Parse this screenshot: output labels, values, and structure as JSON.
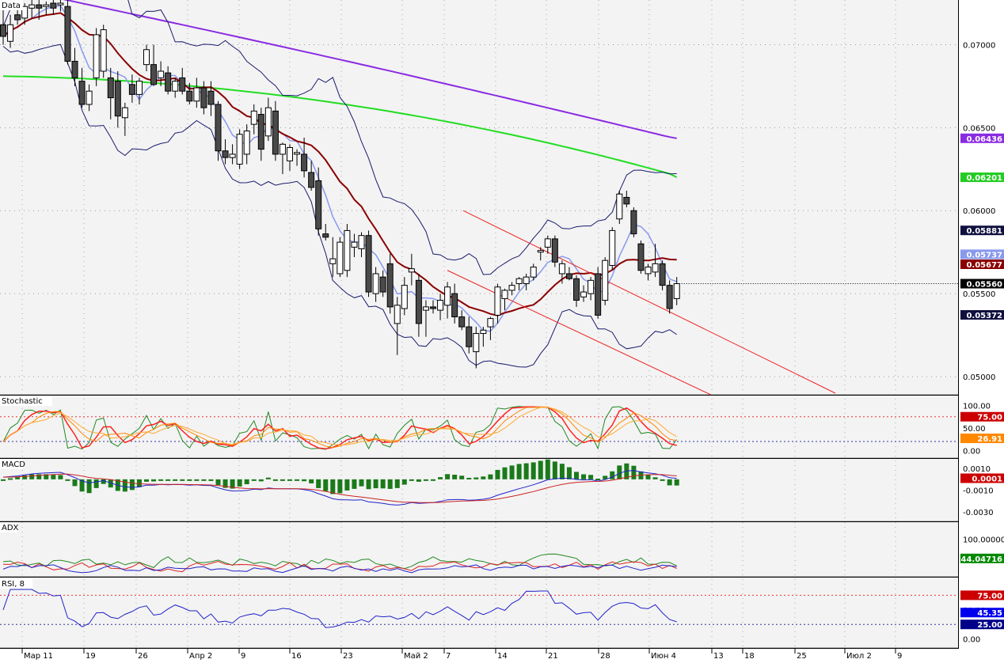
{
  "colors": {
    "panel_bg": "#f3f3f3",
    "up_candle": "#ffffff",
    "down_candle": "#4a4a4a",
    "ma_fast": "#8899ee",
    "ma_mid": "#8b0000",
    "ma_slow_green": "#22dd22",
    "ma_slow_purple": "#8a2be2",
    "bollinger": "#1a1a6e",
    "trend_channel": "#ee2222",
    "level_red": "#ee3333",
    "level_blue": "#3333aa"
  },
  "x_axis": {
    "labels": [
      "Мар 11",
      "19",
      "26",
      "Апр 2",
      "9",
      "16",
      "23",
      "Май 2",
      "7",
      "14",
      "21",
      "28",
      "Июн 4",
      "13",
      "18",
      "25",
      "Июл 2",
      "9"
    ]
  },
  "price_panel": {
    "title": "Data",
    "y_ticks": [
      "0.07000",
      "0.06500",
      "0.06000",
      "0.05500",
      "0.05000"
    ],
    "badges": [
      {
        "label": "0.06436",
        "bg": "#8a2be2",
        "fg": "#ffffff"
      },
      {
        "label": "0.06201",
        "bg": "#22cc22",
        "fg": "#ffffff"
      },
      {
        "label": "0.05881",
        "bg": "#101040",
        "fg": "#ffffff"
      },
      {
        "label": "0.05737",
        "bg": "#8899ee",
        "fg": "#ffffff"
      },
      {
        "label": "0.05677",
        "bg": "#8b0000",
        "fg": "#ffffff"
      },
      {
        "label": "0.05560",
        "bg": "#000000",
        "fg": "#ffffff"
      },
      {
        "label": "0.05372",
        "bg": "#101040",
        "fg": "#ffffff"
      }
    ]
  },
  "stochastic_panel": {
    "title": "Stochastic",
    "y_ticks": [
      "100.00",
      "50.00",
      "0.00"
    ],
    "badges": [
      {
        "label": "75.00",
        "bg": "#cc0000",
        "fg": "#ffffff"
      },
      {
        "label": "26.91",
        "bg": "#ff8800",
        "fg": "#ffffff"
      }
    ]
  },
  "macd_panel": {
    "title": "MACD",
    "y_ticks": [
      "0.0010",
      "-0.0010",
      "-0.0030"
    ],
    "badges": [
      {
        "label": "0.0001",
        "bg": "#cc0000",
        "fg": "#ffffff"
      }
    ]
  },
  "adx_panel": {
    "title": "ADX",
    "y_ticks": [
      "100.00000"
    ],
    "badges": [
      {
        "label": "44.04716",
        "bg": "#008800",
        "fg": "#ffffff"
      }
    ]
  },
  "rsi_panel": {
    "title": "RSI, 8",
    "y_ticks": [
      "50.00",
      "0.00"
    ],
    "badges": [
      {
        "label": "75.00",
        "bg": "#cc0000",
        "fg": "#ffffff"
      },
      {
        "label": "45.35",
        "bg": "#0000ee",
        "fg": "#ffffff"
      },
      {
        "label": "25.00",
        "bg": "#000088",
        "fg": "#ffffff"
      }
    ]
  },
  "chart_data": [
    {
      "type": "candlestick",
      "title": "Data",
      "ylim": [
        0.049,
        0.0725
      ],
      "y_ticks": [
        0.07,
        0.065,
        0.06,
        0.055,
        0.05
      ],
      "x_labels": [
        "Мар 11",
        "19",
        "26",
        "Апр 2",
        "9",
        "16",
        "23",
        "Май 2",
        "7",
        "14",
        "21",
        "28",
        "Июн 4",
        "13",
        "18",
        "25",
        "Июл 2",
        "9"
      ],
      "candles": [
        {
          "o": 0.0712,
          "h": 0.0726,
          "l": 0.07,
          "c": 0.0705
        },
        {
          "o": 0.0702,
          "h": 0.0718,
          "l": 0.0698,
          "c": 0.0712
        },
        {
          "o": 0.0718,
          "h": 0.0726,
          "l": 0.0712,
          "c": 0.0715
        },
        {
          "o": 0.0716,
          "h": 0.0725,
          "l": 0.0712,
          "c": 0.0723
        },
        {
          "o": 0.0722,
          "h": 0.0727,
          "l": 0.0716,
          "c": 0.0724
        },
        {
          "o": 0.0724,
          "h": 0.0727,
          "l": 0.0715,
          "c": 0.0722
        },
        {
          "o": 0.0723,
          "h": 0.0726,
          "l": 0.0718,
          "c": 0.0724
        },
        {
          "o": 0.0725,
          "h": 0.0728,
          "l": 0.0718,
          "c": 0.0722
        },
        {
          "o": 0.0724,
          "h": 0.0727,
          "l": 0.072,
          "c": 0.0725
        },
        {
          "o": 0.0723,
          "h": 0.0727,
          "l": 0.0688,
          "c": 0.069
        },
        {
          "o": 0.069,
          "h": 0.0698,
          "l": 0.0675,
          "c": 0.068
        },
        {
          "o": 0.0678,
          "h": 0.0686,
          "l": 0.0662,
          "c": 0.0664
        },
        {
          "o": 0.0664,
          "h": 0.0676,
          "l": 0.066,
          "c": 0.0672
        },
        {
          "o": 0.068,
          "h": 0.071,
          "l": 0.0675,
          "c": 0.0706
        },
        {
          "o": 0.0684,
          "h": 0.0712,
          "l": 0.068,
          "c": 0.0709
        },
        {
          "o": 0.068,
          "h": 0.0686,
          "l": 0.0655,
          "c": 0.0668
        },
        {
          "o": 0.0678,
          "h": 0.0684,
          "l": 0.065,
          "c": 0.0657
        },
        {
          "o": 0.0656,
          "h": 0.0665,
          "l": 0.0645,
          "c": 0.0662
        },
        {
          "o": 0.0676,
          "h": 0.0682,
          "l": 0.0665,
          "c": 0.067
        },
        {
          "o": 0.067,
          "h": 0.068,
          "l": 0.0664,
          "c": 0.0678
        },
        {
          "o": 0.0688,
          "h": 0.07,
          "l": 0.0684,
          "c": 0.0697
        },
        {
          "o": 0.0688,
          "h": 0.07,
          "l": 0.0675,
          "c": 0.0676
        },
        {
          "o": 0.068,
          "h": 0.069,
          "l": 0.0675,
          "c": 0.0684
        },
        {
          "o": 0.0683,
          "h": 0.0687,
          "l": 0.067,
          "c": 0.0672
        },
        {
          "o": 0.0672,
          "h": 0.068,
          "l": 0.0668,
          "c": 0.0678
        },
        {
          "o": 0.068,
          "h": 0.0686,
          "l": 0.067,
          "c": 0.0672
        },
        {
          "o": 0.0672,
          "h": 0.0677,
          "l": 0.0664,
          "c": 0.0666
        },
        {
          "o": 0.0666,
          "h": 0.068,
          "l": 0.0662,
          "c": 0.0674
        },
        {
          "o": 0.0674,
          "h": 0.0678,
          "l": 0.0658,
          "c": 0.0662
        },
        {
          "o": 0.0672,
          "h": 0.0678,
          "l": 0.0657,
          "c": 0.0664
        },
        {
          "o": 0.0664,
          "h": 0.0666,
          "l": 0.063,
          "c": 0.0636
        },
        {
          "o": 0.0636,
          "h": 0.0643,
          "l": 0.0628,
          "c": 0.0632
        },
        {
          "o": 0.0632,
          "h": 0.064,
          "l": 0.0628,
          "c": 0.0634
        },
        {
          "o": 0.0628,
          "h": 0.0649,
          "l": 0.0625,
          "c": 0.0646
        },
        {
          "o": 0.0634,
          "h": 0.0652,
          "l": 0.0628,
          "c": 0.0648
        },
        {
          "o": 0.0652,
          "h": 0.0664,
          "l": 0.0646,
          "c": 0.066
        },
        {
          "o": 0.0658,
          "h": 0.0662,
          "l": 0.063,
          "c": 0.0637
        },
        {
          "o": 0.0645,
          "h": 0.0668,
          "l": 0.0642,
          "c": 0.0662
        },
        {
          "o": 0.066,
          "h": 0.0666,
          "l": 0.063,
          "c": 0.0634
        },
        {
          "o": 0.0634,
          "h": 0.0641,
          "l": 0.0622,
          "c": 0.064
        },
        {
          "o": 0.063,
          "h": 0.064,
          "l": 0.0624,
          "c": 0.0638
        },
        {
          "o": 0.0634,
          "h": 0.0637,
          "l": 0.0627,
          "c": 0.0635
        },
        {
          "o": 0.0634,
          "h": 0.0644,
          "l": 0.062,
          "c": 0.0624
        },
        {
          "o": 0.0623,
          "h": 0.063,
          "l": 0.0612,
          "c": 0.0614
        },
        {
          "o": 0.0618,
          "h": 0.0626,
          "l": 0.0585,
          "c": 0.0589
        },
        {
          "o": 0.0586,
          "h": 0.0592,
          "l": 0.0582,
          "c": 0.0584
        },
        {
          "o": 0.0568,
          "h": 0.0584,
          "l": 0.056,
          "c": 0.0571
        },
        {
          "o": 0.0562,
          "h": 0.0584,
          "l": 0.056,
          "c": 0.0581
        },
        {
          "o": 0.0564,
          "h": 0.0592,
          "l": 0.056,
          "c": 0.0588
        },
        {
          "o": 0.0578,
          "h": 0.0586,
          "l": 0.0572,
          "c": 0.0581
        },
        {
          "o": 0.0577,
          "h": 0.0587,
          "l": 0.0572,
          "c": 0.0585
        },
        {
          "o": 0.0585,
          "h": 0.0588,
          "l": 0.0548,
          "c": 0.0551
        },
        {
          "o": 0.055,
          "h": 0.0566,
          "l": 0.0545,
          "c": 0.0562
        },
        {
          "o": 0.056,
          "h": 0.0564,
          "l": 0.0548,
          "c": 0.0551
        },
        {
          "o": 0.0568,
          "h": 0.0574,
          "l": 0.0538,
          "c": 0.0542
        },
        {
          "o": 0.0532,
          "h": 0.0548,
          "l": 0.0513,
          "c": 0.0543
        },
        {
          "o": 0.0541,
          "h": 0.056,
          "l": 0.0537,
          "c": 0.0555
        },
        {
          "o": 0.0563,
          "h": 0.0574,
          "l": 0.0555,
          "c": 0.0565
        },
        {
          "o": 0.0558,
          "h": 0.0562,
          "l": 0.0524,
          "c": 0.0532
        },
        {
          "o": 0.054,
          "h": 0.0546,
          "l": 0.0524,
          "c": 0.0542
        },
        {
          "o": 0.0542,
          "h": 0.0546,
          "l": 0.0538,
          "c": 0.0541
        },
        {
          "o": 0.054,
          "h": 0.055,
          "l": 0.0534,
          "c": 0.0546
        },
        {
          "o": 0.0543,
          "h": 0.0557,
          "l": 0.0535,
          "c": 0.0554
        },
        {
          "o": 0.055,
          "h": 0.0556,
          "l": 0.0532,
          "c": 0.0536
        },
        {
          "o": 0.0536,
          "h": 0.054,
          "l": 0.0528,
          "c": 0.053
        },
        {
          "o": 0.053,
          "h": 0.0536,
          "l": 0.0514,
          "c": 0.0518
        },
        {
          "o": 0.0515,
          "h": 0.053,
          "l": 0.0505,
          "c": 0.0526
        },
        {
          "o": 0.0526,
          "h": 0.053,
          "l": 0.0518,
          "c": 0.0528
        },
        {
          "o": 0.053,
          "h": 0.0536,
          "l": 0.0522,
          "c": 0.0535
        },
        {
          "o": 0.0537,
          "h": 0.0556,
          "l": 0.0532,
          "c": 0.0554
        },
        {
          "o": 0.0547,
          "h": 0.0553,
          "l": 0.054,
          "c": 0.0552
        },
        {
          "o": 0.0552,
          "h": 0.0557,
          "l": 0.0549,
          "c": 0.0555
        },
        {
          "o": 0.0556,
          "h": 0.056,
          "l": 0.0552,
          "c": 0.0559
        },
        {
          "o": 0.0556,
          "h": 0.0562,
          "l": 0.0552,
          "c": 0.056
        },
        {
          "o": 0.056,
          "h": 0.0568,
          "l": 0.0558,
          "c": 0.0566
        },
        {
          "o": 0.0575,
          "h": 0.0578,
          "l": 0.057,
          "c": 0.0576
        },
        {
          "o": 0.0578,
          "h": 0.0585,
          "l": 0.0574,
          "c": 0.0583
        },
        {
          "o": 0.0583,
          "h": 0.0585,
          "l": 0.0566,
          "c": 0.0569
        },
        {
          "o": 0.0562,
          "h": 0.057,
          "l": 0.0556,
          "c": 0.0568
        },
        {
          "o": 0.0562,
          "h": 0.0566,
          "l": 0.0558,
          "c": 0.0559
        },
        {
          "o": 0.0559,
          "h": 0.0561,
          "l": 0.0542,
          "c": 0.0546
        },
        {
          "o": 0.0548,
          "h": 0.0555,
          "l": 0.0545,
          "c": 0.0551
        },
        {
          "o": 0.055,
          "h": 0.056,
          "l": 0.0546,
          "c": 0.0558
        },
        {
          "o": 0.0562,
          "h": 0.0566,
          "l": 0.0535,
          "c": 0.0537
        },
        {
          "o": 0.0546,
          "h": 0.0572,
          "l": 0.0543,
          "c": 0.057
        },
        {
          "o": 0.0567,
          "h": 0.059,
          "l": 0.0564,
          "c": 0.0588
        },
        {
          "o": 0.0595,
          "h": 0.0612,
          "l": 0.0592,
          "c": 0.061
        },
        {
          "o": 0.0608,
          "h": 0.0612,
          "l": 0.0602,
          "c": 0.0604
        },
        {
          "o": 0.06,
          "h": 0.0602,
          "l": 0.0584,
          "c": 0.0586
        },
        {
          "o": 0.058,
          "h": 0.0582,
          "l": 0.0562,
          "c": 0.0564
        },
        {
          "o": 0.0562,
          "h": 0.0568,
          "l": 0.0558,
          "c": 0.0566
        },
        {
          "o": 0.0563,
          "h": 0.058,
          "l": 0.056,
          "c": 0.0568
        },
        {
          "o": 0.0568,
          "h": 0.057,
          "l": 0.0552,
          "c": 0.0555
        },
        {
          "o": 0.0555,
          "h": 0.0558,
          "l": 0.0538,
          "c": 0.0541
        },
        {
          "o": 0.0547,
          "h": 0.056,
          "l": 0.0543,
          "c": 0.0556
        }
      ],
      "series": [
        {
          "name": "",
          "color": "#8a2be2",
          "last": 0.06436
        },
        {
          "name": "",
          "color": "#22dd22",
          "last": 0.06201
        },
        {
          "name": "",
          "color": "#8b0000",
          "last": 0.05677
        },
        {
          "name": "",
          "color": "#8899ee",
          "last": 0.05737
        },
        {
          "name": "",
          "color": "#1a1a6e",
          "last": 0.05881
        },
        {
          "name": "",
          "color": "#1a1a6e",
          "last": 0.05372
        }
      ],
      "last_price": 0.0556
    },
    {
      "type": "line",
      "title": "Stochastic",
      "ylim": [
        -10,
        115
      ],
      "y_ticks": [
        100,
        50,
        0
      ],
      "levels": [
        75,
        20
      ],
      "last_value": 26.91
    },
    {
      "type": "bar",
      "title": "MACD",
      "ylim": [
        -0.0036,
        0.0016
      ],
      "y_ticks": [
        0.001,
        -0.001,
        -0.003
      ],
      "last_value": 0.0001
    },
    {
      "type": "line",
      "title": "ADX",
      "y_ticks": [
        100
      ],
      "last_value": 44.04716
    },
    {
      "type": "line",
      "title": "RSI, 8",
      "ylim": [
        -10,
        100
      ],
      "y_ticks": [
        50,
        0
      ],
      "levels": [
        75,
        25
      ],
      "last_value": 45.35
    }
  ]
}
